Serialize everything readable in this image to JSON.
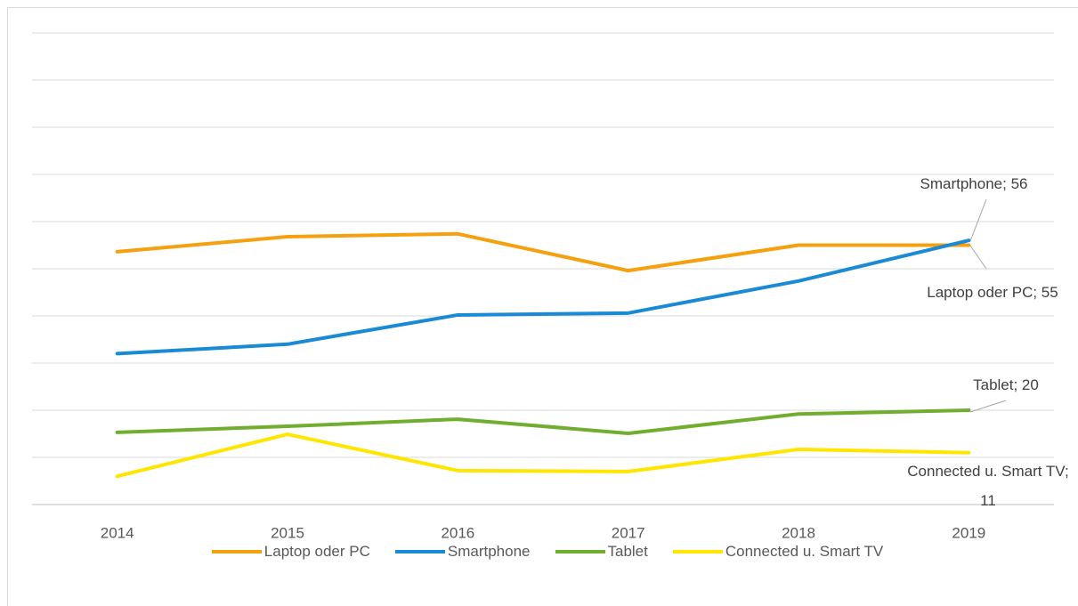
{
  "chart_data": {
    "type": "line",
    "categories": [
      "2014",
      "2015",
      "2016",
      "2017",
      "2018",
      "2019"
    ],
    "series": [
      {
        "name": "Laptop oder PC",
        "color": "#f5a00f",
        "values": [
          53.6,
          56.8,
          57.4,
          49.6,
          55,
          55
        ],
        "value_labels": [
          null,
          null,
          null,
          null,
          null,
          "Laptop oder PC; 55"
        ]
      },
      {
        "name": "Smartphone",
        "color": "#1a8ad4",
        "values": [
          32,
          34,
          40.2,
          40.6,
          47.4,
          56
        ],
        "value_labels": [
          null,
          null,
          null,
          null,
          null,
          "Smartphone; 56"
        ]
      },
      {
        "name": "Tablet",
        "color": "#71ad2f",
        "values": [
          15.3,
          16.6,
          18.1,
          15.1,
          19.2,
          20
        ],
        "value_labels": [
          null,
          null,
          null,
          null,
          null,
          "Tablet; 20"
        ]
      },
      {
        "name": "Connected u. Smart TV",
        "color": "#ffe600",
        "values": [
          6,
          14.9,
          7.2,
          7,
          11.7,
          11
        ],
        "value_labels": [
          null,
          null,
          null,
          null,
          null,
          "Connected u. Smart TV; 11"
        ]
      }
    ],
    "ylim": [
      0,
      100
    ],
    "yticks": [
      0,
      10,
      20,
      30,
      40,
      50,
      60,
      70,
      80,
      90,
      100
    ],
    "grid": true,
    "legend": "bottom"
  }
}
